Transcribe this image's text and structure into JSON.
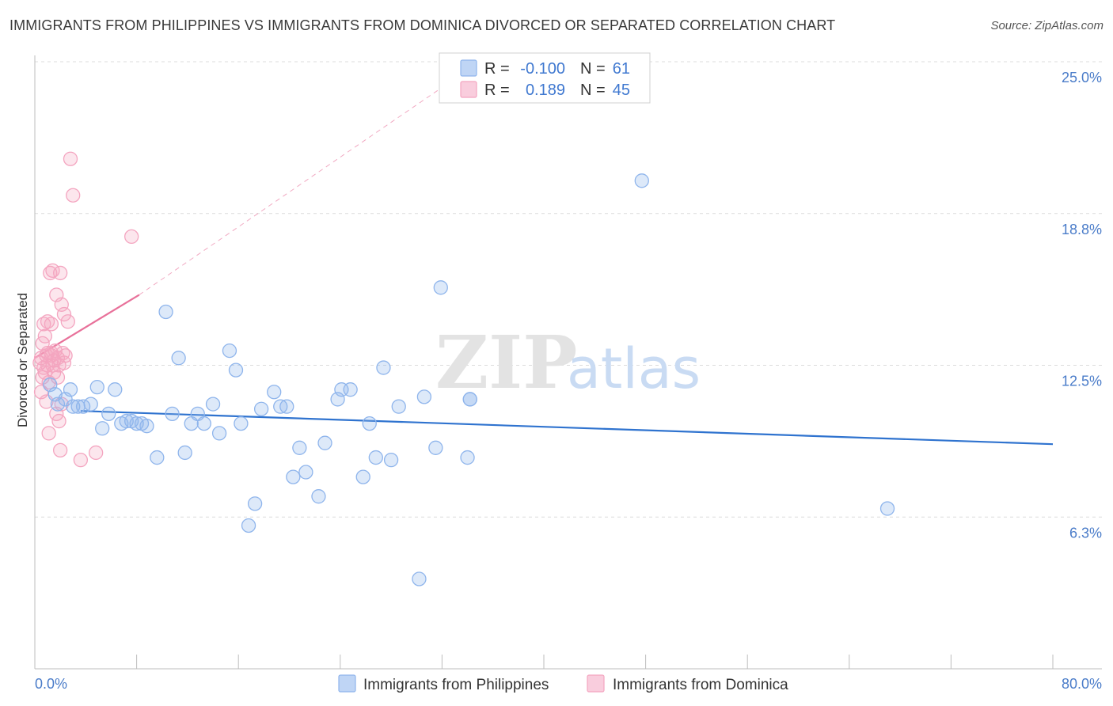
{
  "title": "IMMIGRANTS FROM PHILIPPINES VS IMMIGRANTS FROM DOMINICA DIVORCED OR SEPARATED CORRELATION CHART",
  "source": "Source: ZipAtlas.com",
  "colors": {
    "philippines": "#8fb5ec",
    "philippines_line": "#2f73cf",
    "dominica": "#f4a5c0",
    "dominica_line": "#e8719a",
    "tick_text": "#4a7cc9",
    "grid": "#dcdcdc"
  },
  "legend": {
    "rows": [
      {
        "r_label": "R =",
        "r_value": "-0.100",
        "n_label": "N =",
        "n_value": "61"
      },
      {
        "r_label": "R =",
        "r_value": "0.189",
        "n_label": "N =",
        "n_value": "45"
      }
    ]
  },
  "bottom_legend": [
    "Immigrants from Philippines",
    "Immigrants from Dominica"
  ],
  "watermark": {
    "zip": "ZIP",
    "atlas": "atlas"
  },
  "chart_data": {
    "type": "scatter",
    "ylabel": "Divorced or Separated",
    "xlim": [
      0,
      80
    ],
    "ylim": [
      0,
      25
    ],
    "x_tick_labels": [
      {
        "value": 0,
        "label": "0.0%"
      },
      {
        "value": 80,
        "label": "80.0%"
      }
    ],
    "y_tick_labels": [
      {
        "value": 6.25,
        "label": "6.3%"
      },
      {
        "value": 12.5,
        "label": "12.5%"
      },
      {
        "value": 18.75,
        "label": "18.8%"
      },
      {
        "value": 25.0,
        "label": "25.0%"
      }
    ],
    "grid": true,
    "series": [
      {
        "name": "Immigrants from Philippines",
        "points": [
          [
            1.2,
            11.7
          ],
          [
            1.6,
            11.3
          ],
          [
            1.8,
            10.9
          ],
          [
            2.4,
            11.1
          ],
          [
            2.8,
            11.5
          ],
          [
            3.0,
            10.8
          ],
          [
            3.4,
            10.8
          ],
          [
            3.8,
            10.8
          ],
          [
            4.4,
            10.9
          ],
          [
            4.9,
            11.6
          ],
          [
            5.3,
            9.9
          ],
          [
            5.8,
            10.5
          ],
          [
            6.3,
            11.5
          ],
          [
            6.8,
            10.1
          ],
          [
            7.2,
            10.2
          ],
          [
            7.6,
            10.2
          ],
          [
            8.0,
            10.1
          ],
          [
            8.4,
            10.1
          ],
          [
            8.8,
            10.0
          ],
          [
            9.6,
            8.7
          ],
          [
            10.3,
            14.7
          ],
          [
            10.8,
            10.5
          ],
          [
            11.3,
            12.8
          ],
          [
            11.8,
            8.9
          ],
          [
            12.3,
            10.1
          ],
          [
            12.8,
            10.5
          ],
          [
            13.3,
            10.1
          ],
          [
            14.0,
            10.9
          ],
          [
            14.5,
            9.7
          ],
          [
            15.3,
            13.1
          ],
          [
            15.8,
            12.3
          ],
          [
            16.2,
            10.1
          ],
          [
            16.8,
            5.9
          ],
          [
            17.3,
            6.8
          ],
          [
            17.8,
            10.7
          ],
          [
            18.8,
            11.4
          ],
          [
            19.3,
            10.8
          ],
          [
            19.8,
            10.8
          ],
          [
            20.3,
            7.9
          ],
          [
            20.8,
            9.1
          ],
          [
            21.3,
            8.1
          ],
          [
            22.3,
            7.1
          ],
          [
            22.8,
            9.3
          ],
          [
            23.8,
            11.1
          ],
          [
            24.1,
            11.5
          ],
          [
            24.8,
            11.5
          ],
          [
            25.8,
            7.9
          ],
          [
            26.3,
            10.1
          ],
          [
            26.8,
            8.7
          ],
          [
            27.4,
            12.4
          ],
          [
            28.0,
            8.6
          ],
          [
            28.6,
            10.8
          ],
          [
            30.2,
            3.7
          ],
          [
            30.6,
            11.2
          ],
          [
            31.5,
            9.1
          ],
          [
            31.9,
            15.7
          ],
          [
            34.0,
            8.7
          ],
          [
            34.2,
            11.1
          ],
          [
            47.7,
            20.1
          ],
          [
            67.0,
            6.6
          ],
          [
            34.2,
            11.1
          ]
        ],
        "trend": {
          "x": [
            3.6,
            80.0
          ],
          "y": [
            10.62,
            9.25
          ]
        }
      },
      {
        "name": "Immigrants from Dominica",
        "points": [
          [
            0.4,
            12.6
          ],
          [
            0.5,
            12.8
          ],
          [
            0.5,
            11.4
          ],
          [
            0.6,
            12.0
          ],
          [
            0.6,
            13.4
          ],
          [
            0.7,
            12.4
          ],
          [
            0.7,
            14.2
          ],
          [
            0.8,
            12.2
          ],
          [
            0.8,
            13.7
          ],
          [
            0.9,
            11.0
          ],
          [
            0.9,
            12.9
          ],
          [
            1.0,
            14.3
          ],
          [
            1.0,
            13.0
          ],
          [
            1.0,
            12.5
          ],
          [
            1.1,
            11.8
          ],
          [
            1.1,
            9.7
          ],
          [
            1.2,
            16.3
          ],
          [
            1.3,
            12.9
          ],
          [
            1.3,
            13.0
          ],
          [
            1.4,
            12.5
          ],
          [
            1.4,
            16.4
          ],
          [
            1.5,
            12.7
          ],
          [
            1.5,
            12.2
          ],
          [
            1.6,
            13.1
          ],
          [
            1.7,
            10.5
          ],
          [
            1.8,
            12.0
          ],
          [
            1.8,
            12.8
          ],
          [
            1.9,
            12.5
          ],
          [
            2.0,
            16.3
          ],
          [
            2.0,
            9.0
          ],
          [
            2.1,
            15.0
          ],
          [
            2.2,
            13.0
          ],
          [
            2.3,
            14.6
          ],
          [
            2.3,
            12.6
          ],
          [
            2.4,
            12.9
          ],
          [
            2.8,
            21.0
          ],
          [
            3.0,
            19.5
          ],
          [
            3.6,
            8.6
          ],
          [
            4.8,
            8.9
          ],
          [
            7.6,
            17.8
          ],
          [
            1.7,
            15.4
          ],
          [
            1.3,
            14.2
          ],
          [
            2.1,
            10.9
          ],
          [
            1.9,
            10.2
          ],
          [
            2.6,
            14.3
          ]
        ],
        "trend": {
          "x": [
            0.0,
            8.2
          ],
          "y": [
            12.8,
            15.4
          ]
        },
        "trend_extension": {
          "x": [
            8.2,
            33.0
          ],
          "y": [
            15.4,
            24.3
          ]
        }
      }
    ]
  }
}
